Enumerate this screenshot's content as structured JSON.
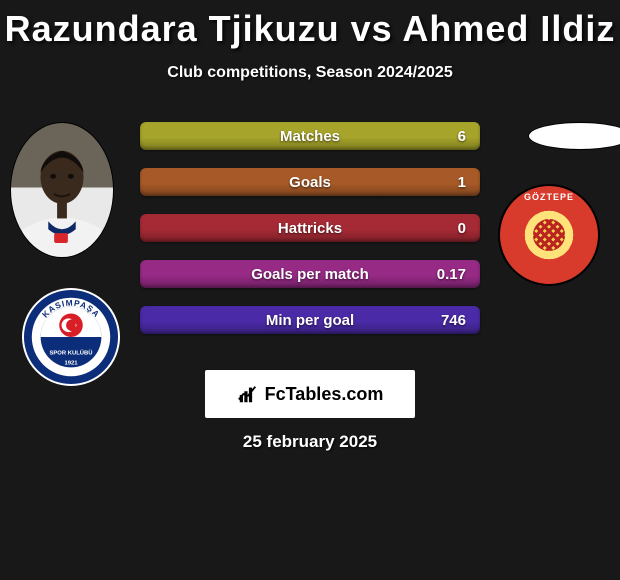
{
  "title": "Razundara Tjikuzu vs Ahmed Ildiz",
  "subtitle": "Club competitions, Season 2024/2025",
  "date": "25 february 2025",
  "brand": "FcTables.com",
  "bars": [
    {
      "label": "Matches",
      "value": "6",
      "bg": "#a6a42a"
    },
    {
      "label": "Goals",
      "value": "1",
      "bg": "#a75a27"
    },
    {
      "label": "Hattricks",
      "value": "0",
      "bg": "#a52a35"
    },
    {
      "label": "Goals per match",
      "value": "0.17",
      "bg": "#962a85"
    },
    {
      "label": "Min per goal",
      "value": "746",
      "bg": "#4a2aa6"
    }
  ],
  "player_left": {
    "name": "Razundara Tjikuzu",
    "photo_bg_top": "#6b6458",
    "photo_bg_bottom": "#e9e9e9",
    "skin": "#3a2a1d",
    "shirt": "#f2f2f2",
    "collar": "#0e2a66",
    "accent": "#d8272b"
  },
  "player_right": {
    "name": "Ahmed Ildiz"
  },
  "club_left": {
    "name": "Kasimpasa",
    "outer": "#ffffff",
    "ring": "#0c2e7a",
    "inner_top": "#ffffff",
    "inner_bottom": "#0c2e7a",
    "flag_red": "#d81e26",
    "text": "KASIMPAŞA"
  },
  "club_right": {
    "name": "Goztepe",
    "label": "GÖZTEPE"
  }
}
